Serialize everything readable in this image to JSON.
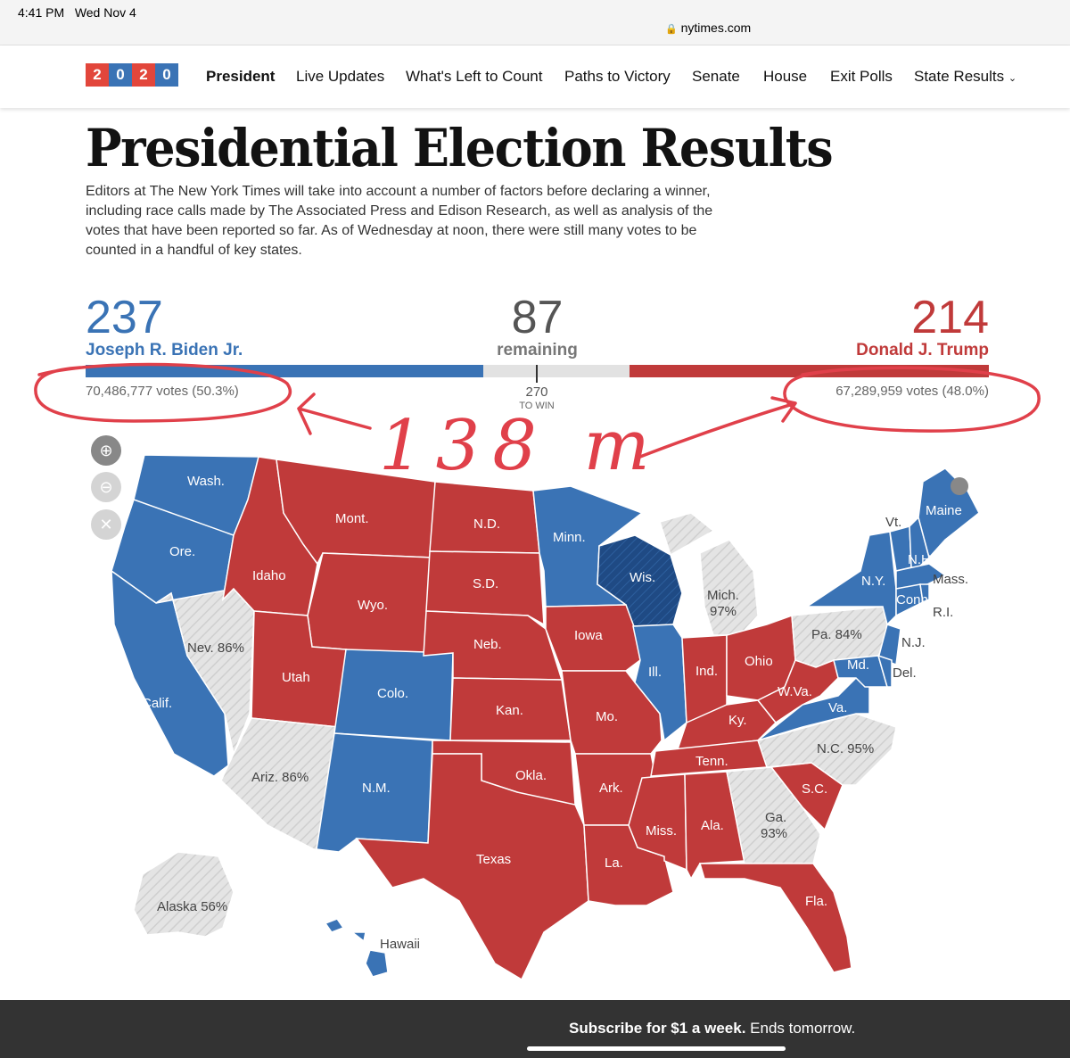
{
  "status_bar": {
    "time": "4:41 PM",
    "date": "Wed Nov 4",
    "url": "nytimes.com"
  },
  "nav": {
    "logo_digits": [
      "2",
      "0",
      "2",
      "0"
    ],
    "items": [
      "President",
      "Live Updates",
      "What's Left to Count",
      "Paths to Victory",
      "Senate",
      "House",
      "Exit Polls",
      "State Results"
    ],
    "active": "President"
  },
  "headline": "Presidential Election Results",
  "intro": "Editors at The New York Times will take into account a number of factors before declaring a winner, including race calls made by The Associated Press and Edison Research, as well as analysis of the votes that have been reported so far. As of Wednesday at noon, there were still many votes to be counted in a handful of key states.",
  "results": {
    "biden": {
      "electoral": "237",
      "name": "Joseph R. Biden Jr.",
      "votes": "70,486,777 votes (50.3%)"
    },
    "remaining": {
      "electoral": "87",
      "label": "remaining"
    },
    "trump": {
      "electoral": "214",
      "name": "Donald J. Trump",
      "votes": "67,289,959 votes (48.0%)"
    },
    "to_win_number": "270",
    "to_win_label": "TO WIN",
    "bar_fraction": {
      "biden": 0.4405,
      "remaining": 0.1617,
      "trump": 0.3978
    }
  },
  "annotation": {
    "text": "138 m"
  },
  "map": {
    "labels": {
      "wash": "Wash.",
      "ore": "Ore.",
      "calif": "Calif.",
      "nev": "Nev. 86%",
      "idaho": "Idaho",
      "mont": "Mont.",
      "wyo": "Wyo.",
      "utah": "Utah",
      "ariz": "Ariz. 86%",
      "colo": "Colo.",
      "nm": "N.M.",
      "nd": "N.D.",
      "sd": "S.D.",
      "neb": "Neb.",
      "kan": "Kan.",
      "okla": "Okla.",
      "texas": "Texas",
      "minn": "Minn.",
      "iowa": "Iowa",
      "mo": "Mo.",
      "ark": "Ark.",
      "la": "La.",
      "wis": "Wis.",
      "ill": "Ill.",
      "mich": "Mich.",
      "mich_pct": "97%",
      "ind": "Ind.",
      "ohio": "Ohio",
      "ky": "Ky.",
      "tenn": "Tenn.",
      "miss": "Miss.",
      "ala": "Ala.",
      "ga": "Ga.",
      "ga_pct": "93%",
      "fla": "Fla.",
      "sc": "S.C.",
      "nc": "N.C. 95%",
      "va": "Va.",
      "wva": "W.Va.",
      "pa": "Pa. 84%",
      "ny": "N.Y.",
      "vt": "Vt.",
      "nh": "N.H.",
      "maine": "Maine",
      "mass": "Mass.",
      "conn": "Conn.",
      "ri": "R.I.",
      "nj": "N.J.",
      "del": "Del.",
      "md": "Md.",
      "alaska": "Alaska 56%",
      "hawaii": "Hawaii"
    }
  },
  "subscribe": {
    "bold": "Subscribe for $1 a week.",
    "rest": " Ends tomorrow."
  },
  "colors": {
    "dem": "#3a73b5",
    "dem_dark": "#1f4a84",
    "rep": "#c03a3a",
    "uncalled": "#e2e2e2",
    "annotation": "#e0404a",
    "logo_red": "#e2463b",
    "logo_blue": "#3a73b5"
  }
}
